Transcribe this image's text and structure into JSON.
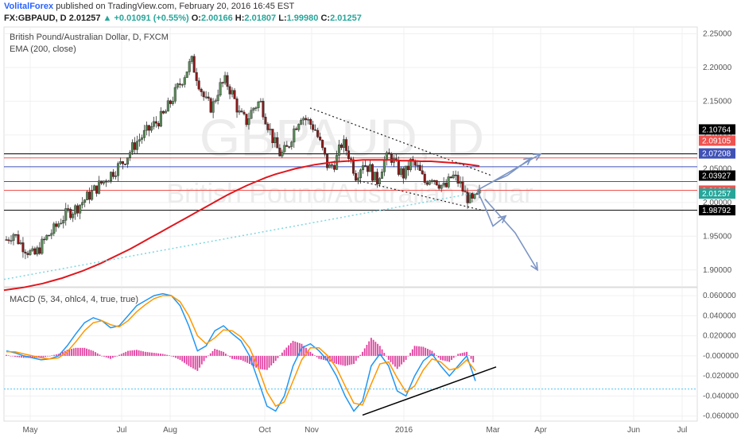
{
  "header": {
    "brand": "VolitalForex",
    "published": "published on TradingView.com, February 20, 2016 16:45 EST",
    "symbol": "FX:GBPAUD, D",
    "last": "2.01257",
    "change": "▲ +0.01091 (+0.55%)",
    "o_label": "O:",
    "o_value": "2.00166",
    "h_label": "H:",
    "h_value": "2.01807",
    "l_label": "L:",
    "l_value": "1.99980",
    "c_label": "C:",
    "c_value": "2.01257"
  },
  "watermark": {
    "symbol": "GBPAUD, D",
    "name": "British Pound/Australian Dollar"
  },
  "price_pane": {
    "legend_title": "British Pound/Australian Dollar, D, FXCM",
    "legend_ema": "EMA (200, close)"
  },
  "macd_pane": {
    "legend": "MACD (5, 34, ohlc4, 4, true, true)"
  },
  "colors": {
    "up": "#26a69a",
    "down": "#ef5350",
    "candle_up": "#5b8c5a",
    "candle_down": "#8b1a1a",
    "ema": "#e0171d",
    "macd": "#2196f3",
    "signal": "#ff9800",
    "hist": "#e040a0",
    "black_line": "#000000",
    "red_line": "#ef5350",
    "blue_line": "#3f51b5",
    "arrow": "#7b94c4"
  },
  "chart_data": [
    {
      "type": "candlestick",
      "title": "British Pound/Australian Dollar, D, FXCM",
      "x_tick_labels": [
        "May",
        "Jul",
        "Aug",
        "Oct",
        "Nov",
        "2016",
        "Mar",
        "Apr",
        "Jun",
        "Jul"
      ],
      "y_tick_labels": [
        "2.25000",
        "2.20000",
        "2.15000",
        "2.10000",
        "2.05000",
        "2.00000",
        "1.95000",
        "1.90000"
      ],
      "ylim": [
        1.875,
        2.26
      ],
      "grid": true,
      "price_levels": [
        {
          "label": "2.10764",
          "value": 2.10764,
          "color": "#000000"
        },
        {
          "label": "2.09105",
          "value": 2.09105,
          "color": "#ef5350"
        },
        {
          "label": "2.07208",
          "value": 2.07208,
          "color": "#3f51b5"
        },
        {
          "label": "2.03927",
          "value": 2.03927,
          "color": "#000000"
        },
        {
          "label": "2.01696",
          "value": 2.01696,
          "color": "#ef5350"
        },
        {
          "label": "2.01257",
          "value": 2.01257,
          "color": "#26a69a"
        },
        {
          "label": "1.98792",
          "value": 1.98792,
          "color": "#000000"
        }
      ],
      "horizontal_lines": [
        {
          "value": 2.072,
          "color": "#000000"
        },
        {
          "value": 2.066,
          "color": "#ef5350"
        },
        {
          "value": 2.053,
          "color": "#3f51b5"
        },
        {
          "value": 2.031,
          "color": "#3f51b5"
        },
        {
          "value": 2.018,
          "color": "#ef5350"
        },
        {
          "value": 1.9885,
          "color": "#000000"
        }
      ],
      "close_series": [
        1.945,
        1.955,
        1.94,
        1.93,
        1.92,
        1.935,
        1.95,
        1.96,
        1.975,
        1.985,
        1.99,
        2.0,
        2.01,
        2.02,
        2.03,
        2.04,
        2.05,
        2.06,
        2.075,
        2.09,
        2.1,
        2.11,
        2.12,
        2.13,
        2.15,
        2.17,
        2.19,
        2.21,
        2.18,
        2.15,
        2.14,
        2.17,
        2.18,
        2.16,
        2.13,
        2.12,
        2.14,
        2.15,
        2.12,
        2.09,
        2.07,
        2.08,
        2.11,
        2.13,
        2.12,
        2.11,
        2.08,
        2.05,
        2.06,
        2.09,
        2.07,
        2.04,
        2.06,
        2.05,
        2.03,
        2.06,
        2.07,
        2.05,
        2.04,
        2.06,
        2.05,
        2.03,
        2.04,
        2.03,
        2.02,
        2.04,
        2.03,
        2.01,
        2.0,
        2.012
      ],
      "ema_series": [
        1.87,
        1.872,
        1.874,
        1.877,
        1.88,
        1.884,
        1.888,
        1.893,
        1.898,
        1.904,
        1.91,
        1.917,
        1.924,
        1.931,
        1.939,
        1.947,
        1.955,
        1.963,
        1.971,
        1.979,
        1.987,
        1.995,
        2.003,
        2.011,
        2.018,
        2.025,
        2.031,
        2.037,
        2.042,
        2.046,
        2.05,
        2.053,
        2.056,
        2.058,
        2.06,
        2.061,
        2.062,
        2.063,
        2.063,
        2.063,
        2.063,
        2.062,
        2.062,
        2.061,
        2.061,
        2.06,
        2.059,
        2.058,
        2.056,
        2.054
      ],
      "annotations": [
        {
          "kind": "down-trend channel",
          "from": "Nov high 2.155",
          "to": "Feb 2016 ~2.05"
        },
        {
          "kind": "arrow-up",
          "target": 2.072
        },
        {
          "kind": "arrow-up",
          "target": 2.053
        },
        {
          "kind": "arrow-down",
          "target": 1.9
        }
      ]
    },
    {
      "type": "line",
      "title": "MACD (5, 34, ohlc4, 4, true, true)",
      "y_tick_labels": [
        "0.060000",
        "0.040000",
        "0.020000",
        "-0.000000",
        "-0.020000",
        "-0.040000",
        "-0.060000"
      ],
      "ylim": [
        -0.065,
        0.068
      ],
      "series": [
        {
          "values": [
            0.005,
            0.003,
            0.0,
            -0.002,
            -0.004,
            -0.003,
            0.0,
            0.01,
            0.022,
            0.033,
            0.038,
            0.035,
            0.028,
            0.03,
            0.04,
            0.05,
            0.055,
            0.06,
            0.062,
            0.06,
            0.05,
            0.03,
            0.005,
            0.01,
            0.025,
            0.03,
            0.022,
            0.015,
            0.0,
            -0.025,
            -0.05,
            -0.055,
            -0.04,
            -0.01,
            0.008,
            0.012,
            0.005,
            -0.005,
            -0.02,
            -0.04,
            -0.055,
            -0.045,
            -0.01,
            0.002,
            -0.01,
            -0.035,
            -0.04,
            -0.02,
            -0.005,
            0.002,
            -0.01,
            -0.02,
            -0.01,
            -0.0,
            -0.025
          ]
        },
        {
          "values": [
            0.004,
            0.004,
            0.002,
            0.0,
            -0.002,
            -0.003,
            -0.002,
            0.004,
            0.014,
            0.025,
            0.033,
            0.035,
            0.031,
            0.029,
            0.035,
            0.044,
            0.051,
            0.057,
            0.06,
            0.06,
            0.054,
            0.04,
            0.02,
            0.012,
            0.018,
            0.026,
            0.025,
            0.019,
            0.008,
            -0.012,
            -0.036,
            -0.05,
            -0.046,
            -0.025,
            -0.004,
            0.008,
            0.008,
            0.0,
            -0.012,
            -0.03,
            -0.047,
            -0.049,
            -0.028,
            -0.008,
            -0.006,
            -0.022,
            -0.036,
            -0.03,
            -0.014,
            -0.003,
            -0.006,
            -0.014,
            -0.012,
            -0.004,
            -0.015
          ]
        }
      ],
      "histogram_series": [
        0.001,
        -0.001,
        -0.002,
        -0.002,
        -0.002,
        0.0,
        0.002,
        0.006,
        0.008,
        0.008,
        0.005,
        0.0,
        -0.003,
        0.001,
        0.005,
        0.006,
        0.004,
        0.003,
        0.002,
        0.0,
        -0.004,
        -0.01,
        -0.015,
        -0.002,
        0.007,
        0.004,
        -0.003,
        -0.004,
        -0.008,
        -0.013,
        -0.014,
        -0.005,
        0.006,
        0.015,
        0.012,
        0.004,
        -0.003,
        -0.005,
        -0.008,
        -0.01,
        -0.008,
        0.004,
        0.018,
        0.01,
        -0.004,
        -0.013,
        -0.004,
        0.01,
        0.009,
        0.005,
        -0.004,
        -0.006,
        0.002,
        0.004,
        -0.01
      ],
      "trendline": {
        "from": -0.059,
        "to": -0.011
      }
    }
  ]
}
